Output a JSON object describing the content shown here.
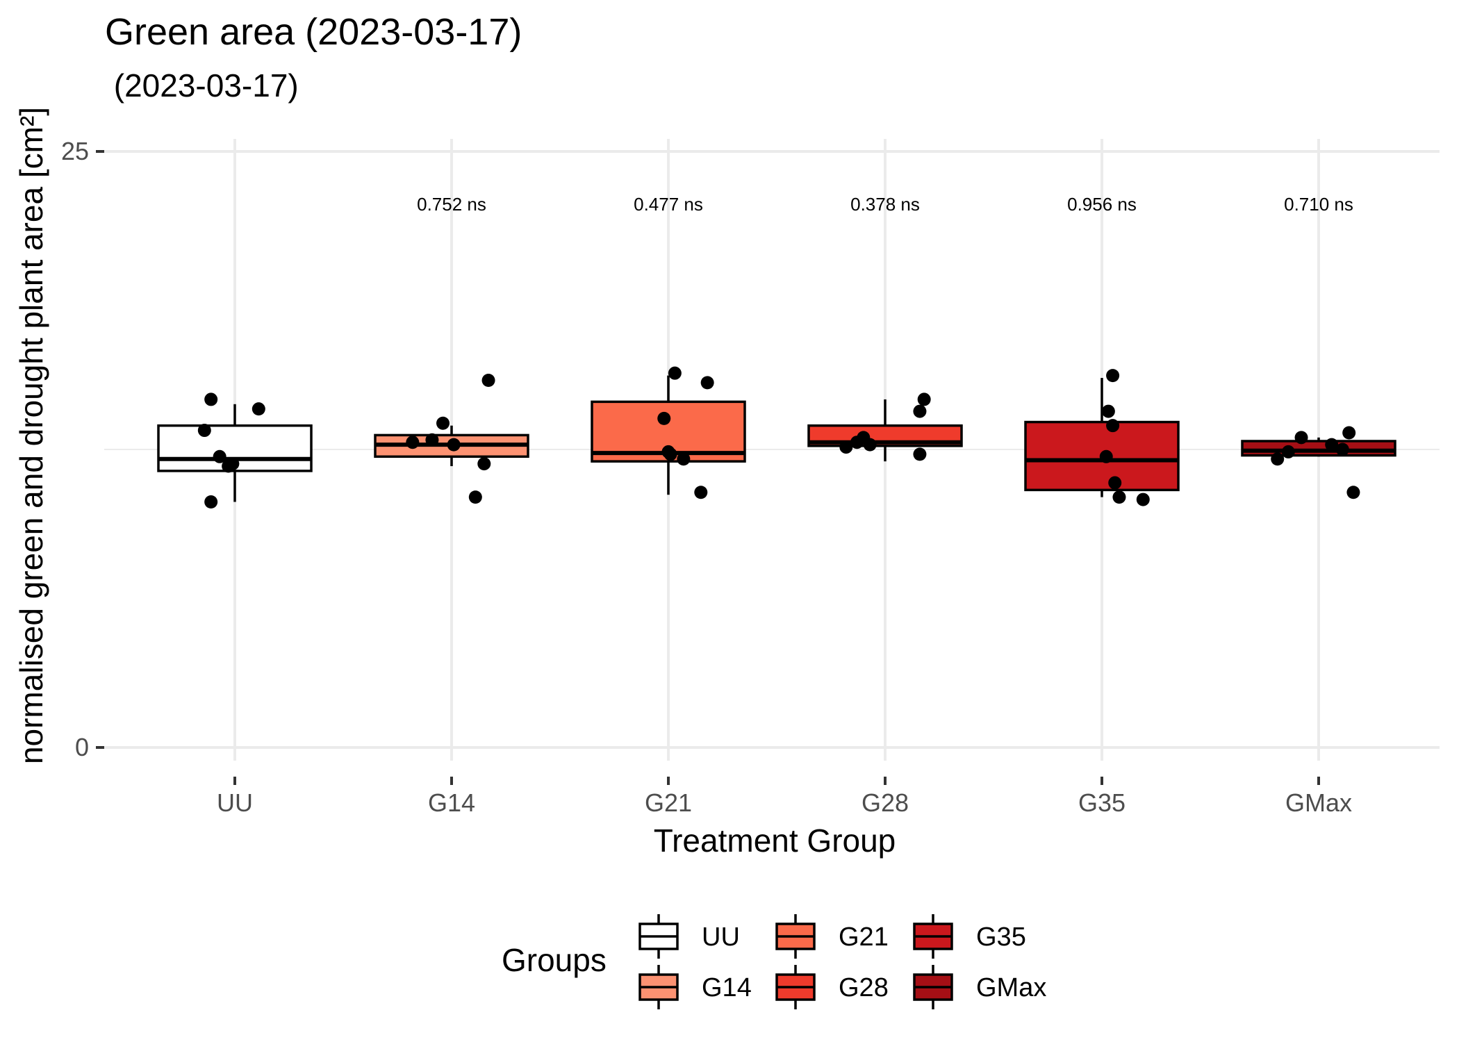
{
  "chart_data": {
    "type": "box",
    "title": "Green area (2023-03-17)",
    "subtitle": " (2023-03-17)",
    "xlabel": "Treatment Group",
    "ylabel": "normalised green and drought plant area [cm²]",
    "ylim": [
      0,
      25
    ],
    "yticks": [
      0,
      25
    ],
    "grid": true,
    "legend": {
      "title": "Groups",
      "position": "bottom",
      "items": [
        "UU",
        "G14",
        "G21",
        "G28",
        "G35",
        "GMax"
      ]
    },
    "categories": [
      "UU",
      "G14",
      "G21",
      "G28",
      "G35",
      "GMax"
    ],
    "colors": [
      "#ffffff",
      "#fc9272",
      "#fb6a4a",
      "#ef3b2c",
      "#cb181d",
      "#a50f15"
    ],
    "boxes": [
      {
        "group": "UU",
        "min": 10.3,
        "q1": 11.6,
        "median": 12.1,
        "q3": 13.5,
        "max": 14.4
      },
      {
        "group": "G14",
        "min": 11.8,
        "q1": 12.2,
        "median": 12.7,
        "q3": 13.1,
        "max": 13.5
      },
      {
        "group": "G21",
        "min": 10.6,
        "q1": 12.0,
        "median": 12.35,
        "q3": 14.5,
        "max": 15.6
      },
      {
        "group": "G28",
        "min": 12.0,
        "q1": 12.65,
        "median": 12.8,
        "q3": 13.5,
        "max": 14.6
      },
      {
        "group": "G35",
        "min": 10.5,
        "q1": 10.8,
        "median": 12.05,
        "q3": 13.65,
        "max": 15.5
      },
      {
        "group": "GMax",
        "min": 12.2,
        "q1": 12.25,
        "median": 12.45,
        "q3": 12.85,
        "max": 13.0
      }
    ],
    "points": [
      {
        "group": "UU",
        "x_offset": -0.11,
        "y": 14.6
      },
      {
        "group": "UU",
        "x_offset": 0.11,
        "y": 14.2
      },
      {
        "group": "UU",
        "x_offset": -0.14,
        "y": 13.3
      },
      {
        "group": "UU",
        "x_offset": -0.07,
        "y": 12.2
      },
      {
        "group": "UU",
        "x_offset": -0.03,
        "y": 11.8
      },
      {
        "group": "UU",
        "x_offset": -0.01,
        "y": 11.9
      },
      {
        "group": "UU",
        "x_offset": -0.11,
        "y": 10.3
      },
      {
        "group": "G14",
        "x_offset": 0.17,
        "y": 15.4
      },
      {
        "group": "G14",
        "x_offset": -0.04,
        "y": 13.6
      },
      {
        "group": "G14",
        "x_offset": -0.09,
        "y": 12.9
      },
      {
        "group": "G14",
        "x_offset": -0.18,
        "y": 12.8
      },
      {
        "group": "G14",
        "x_offset": 0.01,
        "y": 12.7
      },
      {
        "group": "G14",
        "x_offset": 0.15,
        "y": 11.9
      },
      {
        "group": "G14",
        "x_offset": 0.11,
        "y": 10.5
      },
      {
        "group": "G21",
        "x_offset": 0.03,
        "y": 15.7
      },
      {
        "group": "G21",
        "x_offset": 0.18,
        "y": 15.3
      },
      {
        "group": "G21",
        "x_offset": -0.02,
        "y": 13.8
      },
      {
        "group": "G21",
        "x_offset": 0.0,
        "y": 12.4
      },
      {
        "group": "G21",
        "x_offset": 0.01,
        "y": 12.3
      },
      {
        "group": "G21",
        "x_offset": 0.07,
        "y": 12.1
      },
      {
        "group": "G21",
        "x_offset": 0.15,
        "y": 10.7
      },
      {
        "group": "G28",
        "x_offset": 0.18,
        "y": 14.6
      },
      {
        "group": "G28",
        "x_offset": 0.16,
        "y": 14.1
      },
      {
        "group": "G28",
        "x_offset": -0.1,
        "y": 13.0
      },
      {
        "group": "G28",
        "x_offset": -0.13,
        "y": 12.8
      },
      {
        "group": "G28",
        "x_offset": -0.07,
        "y": 12.7
      },
      {
        "group": "G28",
        "x_offset": 0.16,
        "y": 12.3
      },
      {
        "group": "G28",
        "x_offset": -0.18,
        "y": 12.6
      },
      {
        "group": "G35",
        "x_offset": 0.05,
        "y": 15.6
      },
      {
        "group": "G35",
        "x_offset": 0.03,
        "y": 14.1
      },
      {
        "group": "G35",
        "x_offset": 0.05,
        "y": 13.5
      },
      {
        "group": "G35",
        "x_offset": 0.02,
        "y": 12.2
      },
      {
        "group": "G35",
        "x_offset": 0.06,
        "y": 11.1
      },
      {
        "group": "G35",
        "x_offset": 0.08,
        "y": 10.5
      },
      {
        "group": "G35",
        "x_offset": 0.19,
        "y": 10.4
      },
      {
        "group": "GMax",
        "x_offset": -0.08,
        "y": 13.0
      },
      {
        "group": "GMax",
        "x_offset": 0.14,
        "y": 13.2
      },
      {
        "group": "GMax",
        "x_offset": 0.06,
        "y": 12.7
      },
      {
        "group": "GMax",
        "x_offset": 0.11,
        "y": 12.5
      },
      {
        "group": "GMax",
        "x_offset": -0.14,
        "y": 12.4
      },
      {
        "group": "GMax",
        "x_offset": -0.19,
        "y": 12.1
      },
      {
        "group": "GMax",
        "x_offset": 0.16,
        "y": 10.7
      }
    ],
    "annotations": [
      {
        "group": "G14",
        "text": "0.752 ns"
      },
      {
        "group": "G21",
        "text": "0.477 ns"
      },
      {
        "group": "G28",
        "text": "0.378 ns"
      },
      {
        "group": "G35",
        "text": "0.956 ns"
      },
      {
        "group": "GMax",
        "text": "0.710 ns"
      }
    ]
  }
}
